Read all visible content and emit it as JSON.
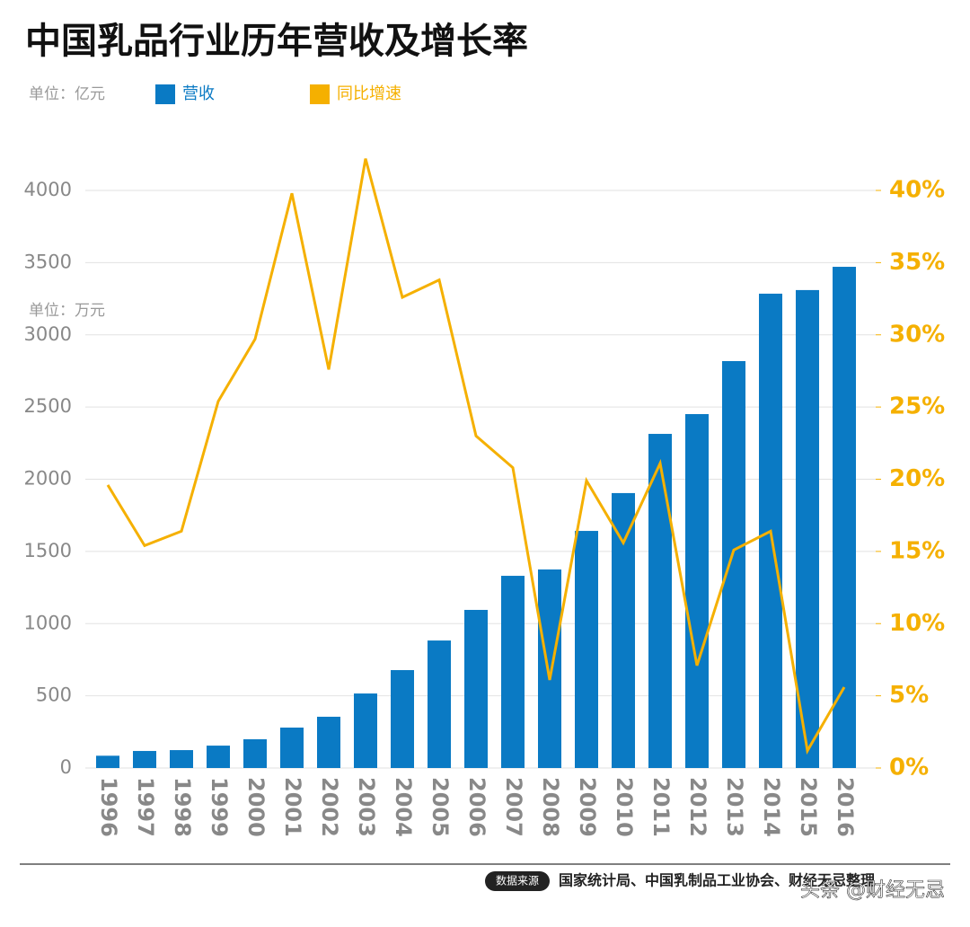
{
  "chart_data": {
    "type": "combo",
    "title": "中国乳品行业历年营收及增长率",
    "unit_left": "单位：亿元",
    "unit_mid": "单位：万元",
    "categories": [
      "1996",
      "1997",
      "1998",
      "1999",
      "2000",
      "2001",
      "2002",
      "2003",
      "2004",
      "2005",
      "2006",
      "2007",
      "2008",
      "2009",
      "2010",
      "2011",
      "2012",
      "2013",
      "2014",
      "2015",
      "2016"
    ],
    "series": [
      {
        "name": "营收",
        "type": "bar",
        "color": "#0a7ac4",
        "values": [
          85,
          118,
          124,
          155,
          199,
          280,
          355,
          516,
          678,
          883,
          1095,
          1331,
          1375,
          1642,
          1904,
          2314,
          2451,
          2818,
          3285,
          3310,
          3471
        ]
      },
      {
        "name": "同比增速",
        "type": "line",
        "axis": "y2",
        "color": "#f5b000",
        "values": [
          19.6,
          15.4,
          16.4,
          25.4,
          29.7,
          39.8,
          27.6,
          42.2,
          32.6,
          33.8,
          23.0,
          20.8,
          6.1,
          19.9,
          15.6,
          21.1,
          7.1,
          15.1,
          16.4,
          1.2,
          5.6
        ]
      }
    ],
    "ylim": [
      0,
      4000
    ],
    "yticks": [
      0,
      500,
      1000,
      1500,
      2000,
      2500,
      3000,
      3500,
      4000
    ],
    "y2lim": [
      0,
      40
    ],
    "y2ticks": [
      {
        "value": 0,
        "label": "0%"
      },
      {
        "value": 5,
        "label": "5%"
      },
      {
        "value": 10,
        "label": "10%"
      },
      {
        "value": 15,
        "label": "15%"
      },
      {
        "value": 20,
        "label": "20%"
      },
      {
        "value": 25,
        "label": "25%"
      },
      {
        "value": 30,
        "label": "30%"
      },
      {
        "value": 35,
        "label": "35%"
      },
      {
        "value": 40,
        "label": "40%"
      }
    ],
    "grid": true
  },
  "footer": {
    "badge": "数据来源",
    "source": "国家统计局、中国乳制品工业协会、财经无忌整理",
    "watermark": "头条 @财经无忌"
  }
}
